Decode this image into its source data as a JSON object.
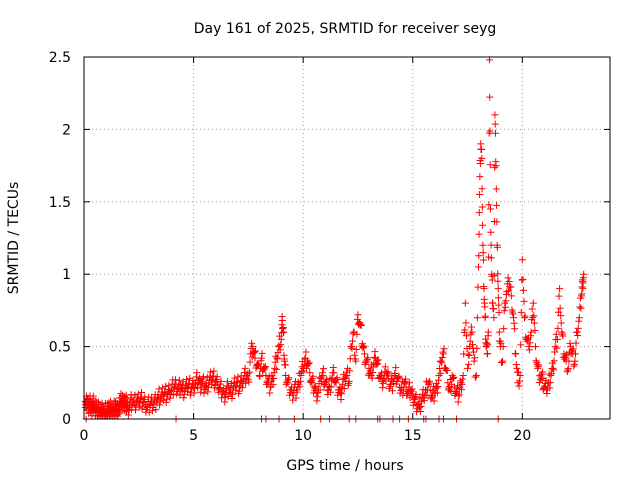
{
  "chart_data": {
    "type": "scatter",
    "title": "Day 161 of 2025, SRMTID for receiver seyg",
    "xlabel": "GPS time / hours",
    "ylabel": "SRMTID / TECUs",
    "xlim": [
      0,
      24
    ],
    "ylim": [
      0,
      2.5
    ],
    "grid": true,
    "marker": "+",
    "color": "#ff0000",
    "x_ticks": [
      0,
      5,
      10,
      15,
      20
    ],
    "x_tick_labels": [
      "0",
      "5",
      "10",
      "15",
      "20"
    ],
    "y_ticks": [
      0,
      0.5,
      1,
      1.5,
      2,
      2.5
    ],
    "y_tick_labels": [
      "0",
      "0.5",
      "1",
      "1.5",
      "2",
      "2.5"
    ],
    "series": [
      {
        "name": "seyg",
        "x": [
          0.05,
          0.1,
          0.15,
          0.2,
          0.25,
          0.3,
          0.35,
          0.4,
          0.45,
          0.5,
          0.55,
          0.6,
          0.65,
          0.7,
          0.75,
          0.8,
          0.85,
          0.9,
          0.95,
          1.0,
          1.05,
          1.1,
          1.15,
          1.2,
          1.25,
          1.3,
          1.35,
          1.4,
          1.45,
          1.5,
          1.55,
          1.6,
          1.65,
          1.7,
          1.75,
          1.8,
          1.85,
          1.9,
          1.95,
          2.0,
          2.1,
          2.2,
          2.3,
          2.4,
          2.5,
          2.6,
          2.7,
          2.8,
          2.9,
          3.0,
          3.1,
          3.2,
          3.3,
          3.4,
          3.5,
          3.6,
          3.7,
          3.8,
          3.9,
          4.0,
          4.1,
          4.2,
          4.3,
          4.4,
          4.5,
          4.6,
          4.7,
          4.8,
          4.9,
          5.0,
          5.1,
          5.2,
          5.3,
          5.4,
          5.5,
          5.6,
          5.7,
          5.8,
          5.9,
          6.0,
          6.1,
          6.2,
          6.3,
          6.4,
          6.5,
          6.6,
          6.7,
          6.8,
          6.9,
          7.0,
          7.1,
          7.2,
          7.3,
          7.4,
          7.5,
          7.6,
          7.7,
          7.8,
          7.9,
          8.0,
          8.1,
          8.2,
          8.3,
          8.4,
          8.5,
          8.6,
          8.7,
          8.8,
          8.9,
          9.0,
          9.05,
          9.1,
          9.15,
          9.2,
          9.3,
          9.4,
          9.5,
          9.6,
          9.7,
          9.8,
          9.9,
          10.0,
          10.1,
          10.2,
          10.3,
          10.4,
          10.5,
          10.6,
          10.7,
          10.8,
          10.9,
          11.0,
          11.1,
          11.2,
          11.3,
          11.4,
          11.5,
          11.6,
          11.7,
          11.8,
          11.9,
          12.0,
          12.1,
          12.2,
          12.3,
          12.4,
          12.5,
          12.6,
          12.7,
          12.8,
          12.9,
          13.0,
          13.1,
          13.2,
          13.3,
          13.4,
          13.5,
          13.6,
          13.7,
          13.8,
          13.9,
          14.0,
          14.1,
          14.2,
          14.3,
          14.4,
          14.5,
          14.6,
          14.7,
          14.8,
          14.9,
          15.0,
          15.1,
          15.2,
          15.3,
          15.4,
          15.5,
          15.6,
          15.7,
          15.8,
          15.9,
          16.0,
          16.1,
          16.2,
          16.3,
          16.4,
          16.5,
          16.6,
          16.7,
          16.8,
          16.9,
          17.0,
          17.1,
          17.2,
          17.3,
          17.4,
          17.5,
          17.6,
          17.7,
          17.8,
          17.9,
          18.0,
          18.05,
          18.1,
          18.15,
          18.2,
          18.25,
          18.3,
          18.35,
          18.4,
          18.45,
          18.5,
          18.55,
          18.6,
          18.65,
          18.7,
          18.75,
          18.8,
          18.85,
          18.9,
          18.95,
          19.0,
          19.1,
          19.2,
          19.3,
          19.4,
          19.5,
          19.6,
          19.7,
          19.8,
          19.9,
          20.0,
          20.1,
          20.2,
          20.3,
          20.4,
          20.5,
          20.6,
          20.7,
          20.8,
          20.9,
          21.0,
          21.1,
          21.2,
          21.3,
          21.4,
          21.5,
          21.6,
          21.7,
          21.8,
          21.9,
          22.0,
          22.1,
          22.2,
          22.3,
          22.4,
          22.5,
          22.6,
          22.7,
          22.75,
          22.8
        ],
        "y": [
          0.12,
          0.1,
          0.14,
          0.08,
          0.11,
          0.09,
          0.07,
          0.12,
          0.1,
          0.06,
          0.08,
          0.05,
          0.07,
          0.06,
          0.05,
          0.04,
          0.06,
          0.05,
          0.07,
          0.05,
          0.04,
          0.06,
          0.05,
          0.08,
          0.06,
          0.05,
          0.07,
          0.06,
          0.09,
          0.07,
          0.05,
          0.08,
          0.1,
          0.12,
          0.11,
          0.13,
          0.1,
          0.12,
          0.09,
          0.08,
          0.11,
          0.13,
          0.1,
          0.12,
          0.11,
          0.14,
          0.12,
          0.1,
          0.08,
          0.1,
          0.12,
          0.11,
          0.13,
          0.15,
          0.14,
          0.16,
          0.18,
          0.17,
          0.19,
          0.2,
          0.22,
          0.24,
          0.21,
          0.23,
          0.2,
          0.19,
          0.22,
          0.24,
          0.21,
          0.22,
          0.25,
          0.27,
          0.24,
          0.26,
          0.23,
          0.22,
          0.25,
          0.27,
          0.29,
          0.26,
          0.24,
          0.21,
          0.19,
          0.17,
          0.2,
          0.22,
          0.18,
          0.2,
          0.23,
          0.25,
          0.22,
          0.26,
          0.28,
          0.3,
          0.27,
          0.45,
          0.5,
          0.42,
          0.38,
          0.3,
          0.42,
          0.36,
          0.3,
          0.25,
          0.22,
          0.28,
          0.35,
          0.42,
          0.5,
          0.55,
          0.68,
          0.6,
          0.4,
          0.3,
          0.25,
          0.2,
          0.18,
          0.22,
          0.2,
          0.24,
          0.3,
          0.35,
          0.42,
          0.4,
          0.32,
          0.25,
          0.22,
          0.18,
          0.2,
          0.28,
          0.3,
          0.25,
          0.2,
          0.22,
          0.27,
          0.32,
          0.25,
          0.2,
          0.18,
          0.24,
          0.28,
          0.3,
          0.26,
          0.5,
          0.6,
          0.4,
          0.72,
          0.65,
          0.52,
          0.45,
          0.4,
          0.35,
          0.3,
          0.36,
          0.42,
          0.38,
          0.3,
          0.26,
          0.28,
          0.32,
          0.28,
          0.24,
          0.26,
          0.3,
          0.28,
          0.22,
          0.2,
          0.25,
          0.22,
          0.18,
          0.2,
          0.16,
          0.14,
          0.1,
          0.08,
          0.12,
          0.15,
          0.2,
          0.25,
          0.2,
          0.15,
          0.18,
          0.22,
          0.3,
          0.4,
          0.45,
          0.35,
          0.25,
          0.2,
          0.3,
          0.22,
          0.18,
          0.16,
          0.25,
          0.3,
          0.8,
          0.35,
          0.5,
          0.6,
          0.4,
          0.3,
          1.05,
          1.55,
          1.9,
          1.8,
          1.2,
          0.9,
          0.7,
          0.5,
          0.45,
          0.6,
          2.48,
          1.45,
          1.0,
          0.8,
          0.7,
          2.1,
          1.75,
          1.2,
          0.9,
          0.6,
          0.5,
          0.4,
          0.8,
          0.88,
          0.95,
          0.85,
          0.7,
          0.45,
          0.25,
          0.3,
          1.1,
          0.7,
          0.55,
          0.5,
          0.6,
          0.8,
          0.5,
          0.35,
          0.3,
          0.28,
          0.22,
          0.2,
          0.25,
          0.3,
          0.35,
          0.5,
          0.55,
          0.9,
          0.6,
          0.45,
          0.4,
          0.35,
          0.5,
          0.45,
          0.4,
          0.6,
          0.7,
          0.85,
          0.95,
          1.0
        ],
        "baseline_x": [
          0.1,
          4.2,
          8.1,
          8.3,
          8.9,
          9.6,
          10.8,
          11.2,
          12.1,
          12.4,
          13.4,
          13.5,
          14.1,
          14.4,
          14.8,
          15.5,
          15.6,
          16.2,
          16.4,
          17.0,
          18.9
        ]
      }
    ]
  }
}
